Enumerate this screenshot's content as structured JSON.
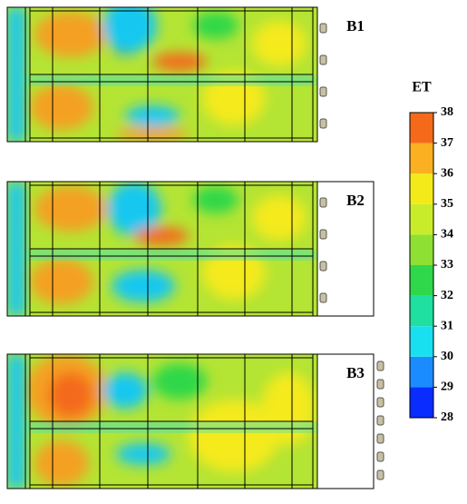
{
  "chart_data": {
    "type": "contour",
    "panels": [
      {
        "label": "B1"
      },
      {
        "label": "B2"
      },
      {
        "label": "B3"
      }
    ],
    "colorbar": {
      "title": "ET",
      "lim": [
        28,
        38
      ],
      "ticks": [
        28,
        29,
        30,
        31,
        32,
        33,
        34,
        35,
        36,
        37,
        38
      ],
      "colors": [
        "#0a2cff",
        "#1a8cff",
        "#19e0f0",
        "#1fe0a0",
        "#2ed84a",
        "#8ee032",
        "#c8ec2a",
        "#f4ea1a",
        "#fab020",
        "#f46a1a"
      ]
    }
  }
}
